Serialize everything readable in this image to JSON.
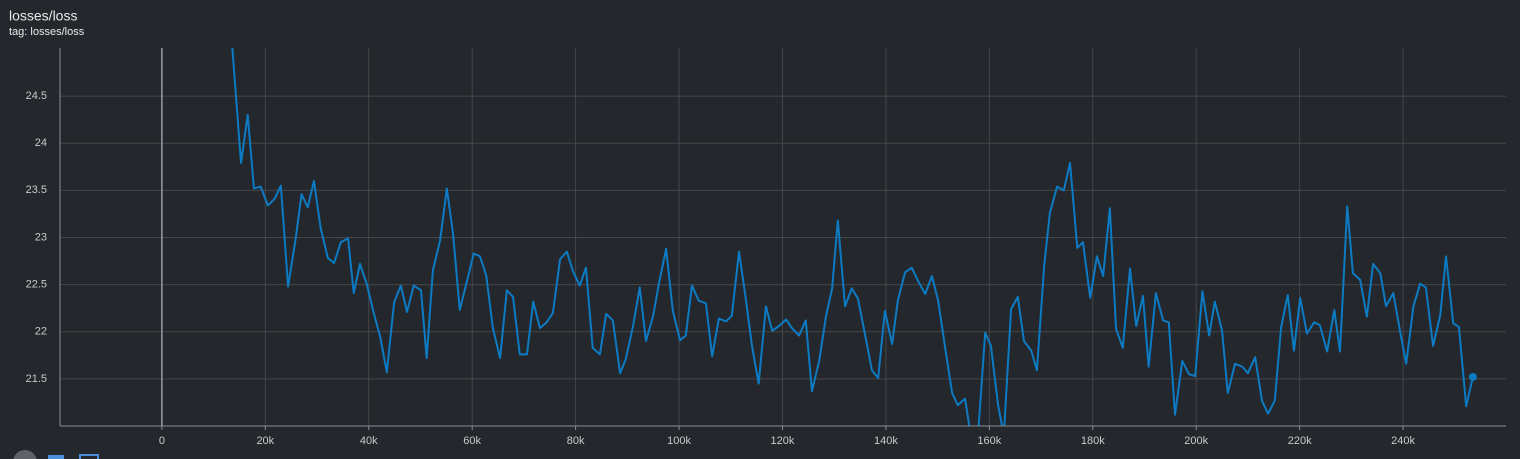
{
  "chart_data": {
    "type": "line",
    "title": "losses/loss",
    "subtitle": "tag: losses/loss",
    "xlim": [
      -19700,
      259900
    ],
    "ylim": [
      21,
      25.01
    ],
    "xticks": [
      {
        "value": 0,
        "label": "0"
      },
      {
        "value": 20000,
        "label": "20k"
      },
      {
        "value": 40000,
        "label": "40k"
      },
      {
        "value": 60000,
        "label": "60k"
      },
      {
        "value": 80000,
        "label": "80k"
      },
      {
        "value": 100000,
        "label": "100k"
      },
      {
        "value": 120000,
        "label": "120k"
      },
      {
        "value": 140000,
        "label": "140k"
      },
      {
        "value": 160000,
        "label": "160k"
      },
      {
        "value": 180000,
        "label": "180k"
      },
      {
        "value": 200000,
        "label": "200k"
      },
      {
        "value": 220000,
        "label": "220k"
      },
      {
        "value": 240000,
        "label": "240k"
      }
    ],
    "yticks": [
      21.5,
      22,
      22.5,
      23,
      23.5,
      24,
      24.5
    ],
    "grid": true,
    "x": [
      13500,
      15300,
      16600,
      17800,
      19100,
      20500,
      21800,
      23000,
      24400,
      25900,
      27000,
      28200,
      29400,
      30700,
      32100,
      33300,
      34600,
      36000,
      37100,
      38300,
      39600,
      41000,
      42200,
      43500,
      44900,
      46200,
      47400,
      48700,
      50100,
      51200,
      52400,
      53800,
      55100,
      56300,
      57600,
      59000,
      60300,
      61500,
      62700,
      64000,
      65400,
      66700,
      67900,
      69200,
      70600,
      71800,
      73100,
      74400,
      75600,
      77000,
      78300,
      79500,
      80800,
      82000,
      83300,
      84700,
      85900,
      87200,
      88600,
      89700,
      91100,
      92400,
      93600,
      95000,
      96100,
      97500,
      98800,
      100200,
      101300,
      102500,
      103800,
      105200,
      106400,
      107700,
      109100,
      110200,
      111600,
      112900,
      114100,
      115400,
      116800,
      118000,
      119300,
      120700,
      121800,
      123200,
      124500,
      125700,
      127100,
      128400,
      129600,
      130700,
      132100,
      133400,
      134600,
      136000,
      137300,
      138500,
      139800,
      141200,
      142300,
      143700,
      145000,
      146200,
      147600,
      148900,
      150100,
      151400,
      152800,
      153900,
      155300,
      156400,
      157800,
      159200,
      160300,
      161700,
      162800,
      164200,
      165500,
      166700,
      168100,
      169200,
      170600,
      171700,
      173100,
      174400,
      175600,
      177000,
      178100,
      179500,
      180800,
      182000,
      183300,
      184500,
      185800,
      187200,
      188400,
      189700,
      190800,
      192200,
      193600,
      194700,
      195900,
      197300,
      198600,
      199800,
      201200,
      202500,
      203600,
      205000,
      206100,
      207500,
      208900,
      210000,
      211400,
      212700,
      213900,
      215200,
      216400,
      217700,
      218900,
      220100,
      221400,
      222800,
      223900,
      225300,
      226700,
      227800,
      229200,
      230300,
      231700,
      233000,
      234200,
      235600,
      236700,
      238100,
      239400,
      240600,
      242000,
      243300,
      244400,
      245800,
      247200,
      248300,
      249700,
      250800,
      252200,
      253500
    ],
    "series": [
      {
        "name": "losses/loss",
        "color": "#0c7bc4",
        "values": [
          25.1,
          23.79,
          24.3,
          23.52,
          23.54,
          23.34,
          23.41,
          23.55,
          22.48,
          23.0,
          23.46,
          23.32,
          23.6,
          23.1,
          22.78,
          22.73,
          22.95,
          22.99,
          22.41,
          22.72,
          22.51,
          22.19,
          21.95,
          21.57,
          22.31,
          22.49,
          22.21,
          22.49,
          22.44,
          21.72,
          22.65,
          22.97,
          23.52,
          23.04,
          22.23,
          22.54,
          22.83,
          22.8,
          22.6,
          22.04,
          21.72,
          22.44,
          22.37,
          21.76,
          21.76,
          22.32,
          22.04,
          22.1,
          22.2,
          22.77,
          22.85,
          22.64,
          22.49,
          22.68,
          21.83,
          21.76,
          22.19,
          22.12,
          21.56,
          21.71,
          22.06,
          22.47,
          21.9,
          22.17,
          22.51,
          22.88,
          22.22,
          21.91,
          21.96,
          22.49,
          22.33,
          22.3,
          21.74,
          22.14,
          22.11,
          22.17,
          22.85,
          22.35,
          21.85,
          21.45,
          22.27,
          22.01,
          22.06,
          22.13,
          22.04,
          21.96,
          22.12,
          21.37,
          21.69,
          22.16,
          22.46,
          23.18,
          22.27,
          22.46,
          22.35,
          21.96,
          21.59,
          21.51,
          22.22,
          21.87,
          22.33,
          22.63,
          22.68,
          22.54,
          22.4,
          22.59,
          22.33,
          21.85,
          21.35,
          21.22,
          21.29,
          20.9,
          20.9,
          21.99,
          21.85,
          21.22,
          20.9,
          22.24,
          22.37,
          21.9,
          21.8,
          21.59,
          22.7,
          23.26,
          23.54,
          23.5,
          23.79,
          22.89,
          22.95,
          22.36,
          22.8,
          22.59,
          23.31,
          22.03,
          21.83,
          22.67,
          22.06,
          22.38,
          21.63,
          22.41,
          22.12,
          22.1,
          21.12,
          21.69,
          21.55,
          21.53,
          22.43,
          21.96,
          22.32,
          22.01,
          21.35,
          21.66,
          21.63,
          21.56,
          21.73,
          21.27,
          21.13,
          21.27,
          22.04,
          22.39,
          21.8,
          22.36,
          21.98,
          22.1,
          22.07,
          21.79,
          22.23,
          21.79,
          23.33,
          22.62,
          22.55,
          22.16,
          22.72,
          22.62,
          22.27,
          22.41,
          22.01,
          21.66,
          22.27,
          22.51,
          22.47,
          21.85,
          22.18,
          22.8,
          22.09,
          22.05,
          21.21,
          21.52
        ]
      }
    ]
  }
}
